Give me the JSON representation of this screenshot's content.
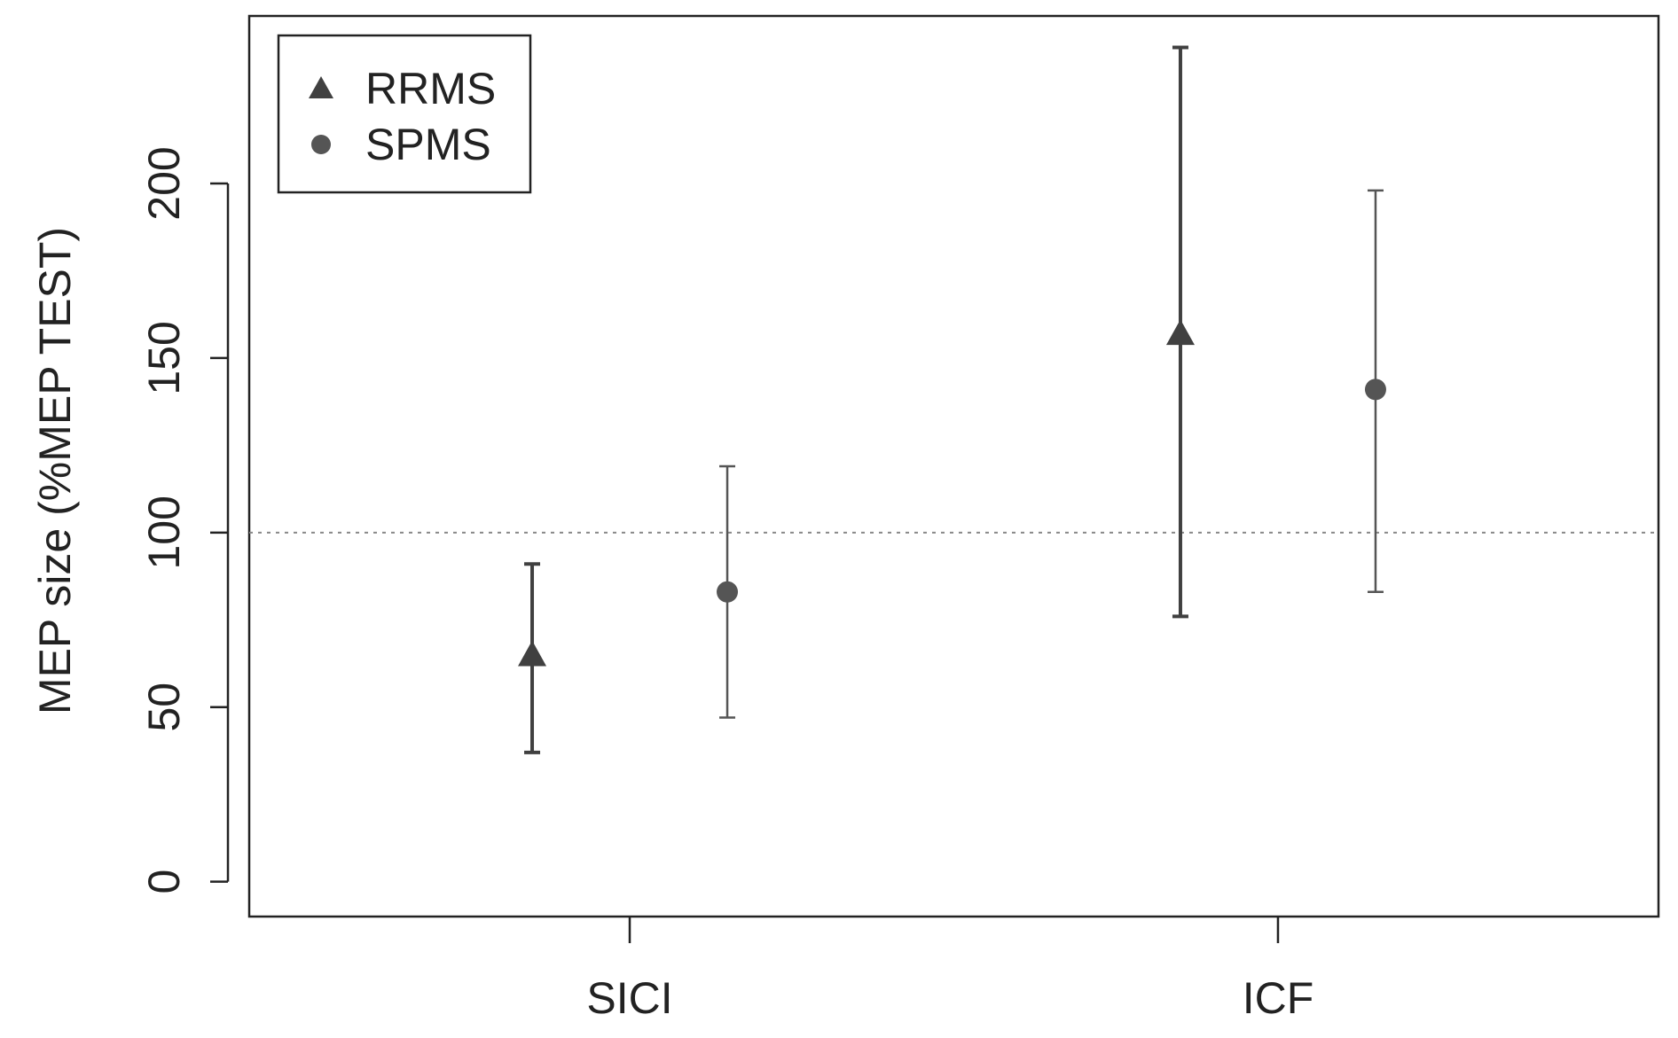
{
  "chart_data": {
    "type": "errorbar",
    "ylabel": "MEP size (%MEP TEST)",
    "categories": [
      "SICI",
      "ICF"
    ],
    "series": [
      {
        "name": "RRMS",
        "color": "#404040",
        "marker": "triangle",
        "values": [
          65,
          157
        ],
        "lower": [
          37,
          76
        ],
        "upper": [
          91,
          239
        ]
      },
      {
        "name": "SPMS",
        "color": "#555555",
        "marker": "circle",
        "values": [
          83,
          141
        ],
        "lower": [
          47,
          83
        ],
        "upper": [
          119,
          198
        ]
      }
    ],
    "ylim": [
      -10,
      248
    ],
    "yticks": [
      0,
      50,
      100,
      150,
      200
    ],
    "hline": 100,
    "legend": "top-left"
  }
}
